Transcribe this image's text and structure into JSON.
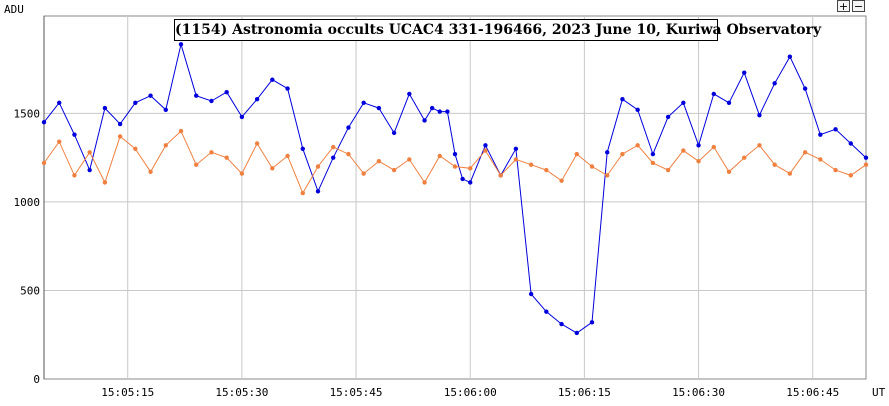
{
  "toolbar": {
    "zoom_in_label": "+",
    "zoom_out_label": "−"
  },
  "chart_data": {
    "type": "line",
    "title": "(1154) Astronomia occults UCAC4 331-196466, 2023 June 10, Kuriwa Observatory",
    "ylabel": "ADU",
    "xlabel": "UT",
    "x_tick_labels": [
      "15:05:15",
      "15:05:30",
      "15:05:45",
      "15:06:00",
      "15:06:15",
      "15:06:30",
      "15:06:45"
    ],
    "x_tick_seconds": [
      15,
      30,
      45,
      60,
      75,
      90,
      105
    ],
    "y_ticks": [
      0,
      500,
      1000,
      1500
    ],
    "ylim": [
      0,
      2050
    ],
    "xlim": [
      4,
      112
    ],
    "grid": true,
    "series": [
      {
        "color": "#0000dd",
        "x": [
          4,
          6,
          8,
          10,
          12,
          14,
          16,
          18,
          20,
          22,
          24,
          26,
          28,
          30,
          32,
          34,
          36,
          38,
          40,
          42,
          44,
          46,
          48,
          50,
          52,
          54,
          55,
          56,
          57,
          58,
          59,
          60,
          62,
          64,
          66,
          68,
          70,
          72,
          74,
          76,
          78,
          80,
          82,
          84,
          86,
          88,
          90,
          92,
          94,
          96,
          98,
          100,
          102,
          104,
          106,
          108,
          110,
          112
        ],
        "y": [
          1450,
          1560,
          1380,
          1180,
          1530,
          1440,
          1560,
          1600,
          1520,
          1890,
          1600,
          1570,
          1620,
          1480,
          1580,
          1690,
          1640,
          1300,
          1060,
          1250,
          1420,
          1560,
          1530,
          1390,
          1610,
          1460,
          1530,
          1510,
          1510,
          1270,
          1130,
          1110,
          1320,
          1150,
          1300,
          480,
          380,
          310,
          260,
          320,
          1280,
          1580,
          1520,
          1270,
          1480,
          1560,
          1320,
          1610,
          1560,
          1730,
          1490,
          1670,
          1820,
          1640,
          1380,
          1410,
          1330,
          1250
        ]
      },
      {
        "color": "#f08040",
        "x": [
          4,
          6,
          8,
          10,
          12,
          14,
          16,
          18,
          20,
          22,
          24,
          26,
          28,
          30,
          32,
          34,
          36,
          38,
          40,
          42,
          44,
          46,
          48,
          50,
          52,
          54,
          56,
          58,
          60,
          62,
          64,
          66,
          68,
          70,
          72,
          74,
          76,
          78,
          80,
          82,
          84,
          86,
          88,
          90,
          92,
          94,
          96,
          98,
          100,
          102,
          104,
          106,
          108,
          110,
          112
        ],
        "y": [
          1220,
          1340,
          1150,
          1280,
          1110,
          1370,
          1300,
          1170,
          1320,
          1400,
          1210,
          1280,
          1250,
          1160,
          1330,
          1190,
          1260,
          1050,
          1200,
          1310,
          1270,
          1160,
          1230,
          1180,
          1240,
          1110,
          1260,
          1200,
          1190,
          1290,
          1150,
          1240,
          1210,
          1180,
          1120,
          1270,
          1200,
          1150,
          1270,
          1320,
          1220,
          1180,
          1290,
          1230,
          1310,
          1170,
          1250,
          1320,
          1210,
          1160,
          1280,
          1240,
          1180,
          1150,
          1210
        ]
      }
    ]
  }
}
